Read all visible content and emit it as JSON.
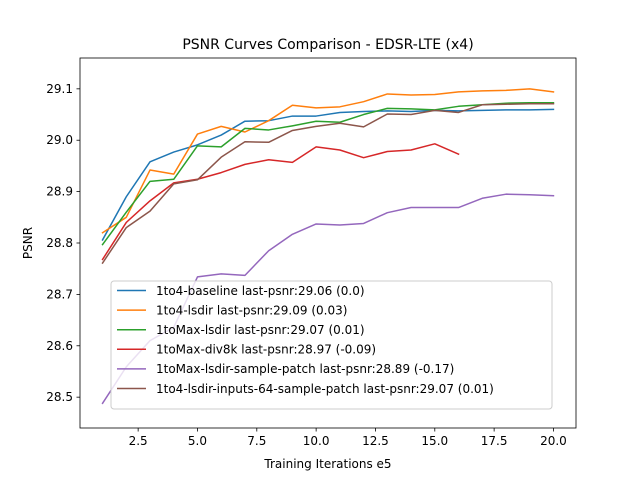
{
  "chart_data": {
    "type": "line",
    "title": "PSNR Curves Comparison - EDSR-LTE (x4)",
    "xlabel": "Training Iterations e5",
    "ylabel": "PSNR",
    "xlim": [
      0.05,
      20.95
    ],
    "ylim": [
      28.44,
      29.16
    ],
    "xticks": [
      2.5,
      5.0,
      7.5,
      10.0,
      12.5,
      15.0,
      17.5,
      20.0
    ],
    "xtick_labels": [
      "2.5",
      "5.0",
      "7.5",
      "10.0",
      "12.5",
      "15.0",
      "17.5",
      "20.0"
    ],
    "yticks": [
      28.5,
      28.6,
      28.7,
      28.8,
      28.9,
      29.0,
      29.1
    ],
    "ytick_labels": [
      "28.5",
      "28.6",
      "28.7",
      "28.8",
      "28.9",
      "29.0",
      "29.1"
    ],
    "grid": false,
    "legend_position": "lower-right",
    "series": [
      {
        "name": "1to4-baseline last-psnr:29.06 (0.0)",
        "color": "#1f77b4",
        "x": [
          1,
          2,
          3,
          4,
          5,
          6,
          7,
          8,
          9,
          10,
          11,
          12,
          13,
          14,
          15,
          16,
          17,
          18,
          19,
          20
        ],
        "values": [
          28.806,
          28.89,
          28.958,
          28.977,
          28.991,
          29.01,
          29.037,
          29.038,
          29.047,
          29.047,
          29.054,
          29.056,
          29.057,
          29.056,
          29.058,
          29.057,
          29.058,
          29.059,
          29.059,
          29.06
        ]
      },
      {
        "name": "1to4-lsdir last-psnr:29.09 (0.03)",
        "color": "#ff7f0e",
        "x": [
          1,
          2,
          3,
          4,
          5,
          6,
          7,
          8,
          9,
          10,
          11,
          12,
          13,
          14,
          15,
          16,
          17,
          18,
          19,
          20
        ],
        "values": [
          28.82,
          28.85,
          28.942,
          28.934,
          29.012,
          29.027,
          29.016,
          29.038,
          29.068,
          29.063,
          29.065,
          29.075,
          29.09,
          29.088,
          29.089,
          29.094,
          29.096,
          29.097,
          29.1,
          29.094
        ]
      },
      {
        "name": "1toMax-lsdir last-psnr:29.07 (0.01)",
        "color": "#2ca02c",
        "x": [
          1,
          2,
          3,
          4,
          5,
          6,
          7,
          8,
          9,
          10,
          11,
          12,
          13,
          14,
          15,
          16,
          17,
          18,
          19,
          20
        ],
        "values": [
          28.797,
          28.86,
          28.92,
          28.924,
          28.989,
          28.987,
          29.023,
          29.02,
          29.028,
          29.037,
          29.035,
          29.05,
          29.062,
          29.061,
          29.059,
          29.066,
          29.069,
          29.072,
          29.073,
          29.073
        ]
      },
      {
        "name": "1toMax-div8k last-psnr:28.97 (-0.09)",
        "color": "#d62728",
        "x": [
          1,
          2,
          3,
          4,
          5,
          6,
          7,
          8,
          9,
          10,
          11,
          12,
          13,
          14,
          15,
          16
        ],
        "values": [
          28.768,
          28.84,
          28.882,
          28.917,
          28.924,
          28.937,
          28.953,
          28.962,
          28.957,
          28.987,
          28.981,
          28.966,
          28.978,
          28.981,
          28.993,
          28.973
        ]
      },
      {
        "name": "1toMax-lsdir-sample-patch last-psnr:28.89 (-0.17)",
        "color": "#9467bd",
        "x": [
          1,
          2,
          3,
          4,
          5,
          6,
          7,
          8,
          9,
          10,
          11,
          12,
          13,
          14,
          15,
          16,
          17,
          18,
          19,
          20
        ],
        "values": [
          28.488,
          28.559,
          28.61,
          28.636,
          28.734,
          28.74,
          28.737,
          28.785,
          28.817,
          28.837,
          28.835,
          28.838,
          28.859,
          28.869,
          28.869,
          28.869,
          28.887,
          28.895,
          28.894,
          28.892
        ]
      },
      {
        "name": "1to4-lsdir-inputs-64-sample-patch last-psnr:29.07 (0.01)",
        "color": "#8c564b",
        "x": [
          1,
          2,
          3,
          4,
          5,
          6,
          7,
          8,
          9,
          10,
          11,
          12,
          13,
          14,
          15,
          16,
          17,
          18,
          19,
          20
        ],
        "values": [
          28.761,
          28.83,
          28.862,
          28.915,
          28.923,
          28.967,
          28.997,
          28.996,
          29.019,
          29.027,
          29.033,
          29.026,
          29.051,
          29.05,
          29.058,
          29.054,
          29.069,
          29.07,
          29.071,
          29.071
        ]
      }
    ]
  }
}
